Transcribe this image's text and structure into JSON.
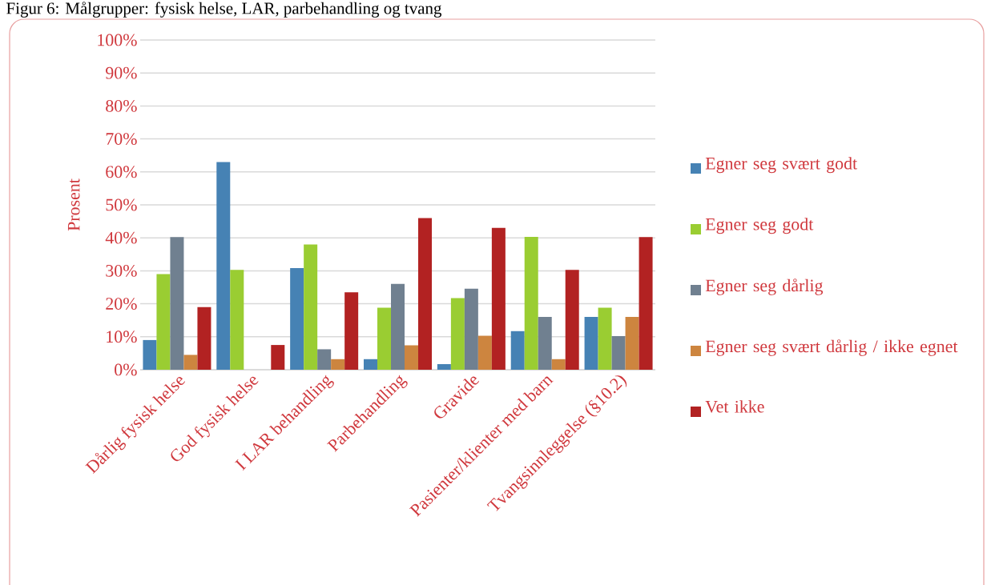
{
  "chart_data": {
    "type": "bar",
    "title": "Figur 6: Målgrupper: fysisk helse, LAR, parbehandling og tvang",
    "ylabel": "Prosent",
    "categories": [
      "Dårlig fysisk helse",
      "God fysisk helse",
      "I LAR behandling",
      "Parbehandling",
      "Gravide",
      "Pasienter/klienter med barn",
      "Tvangsinnleggelse (§10.2)"
    ],
    "series": [
      {
        "name": "Egner seg svært godt",
        "color": "#4682b4",
        "values": [
          9,
          63,
          30.8,
          3.2,
          1.7,
          11.7,
          16
        ]
      },
      {
        "name": "Egner seg godt",
        "color": "#9acd32",
        "values": [
          29,
          30.3,
          38,
          18.8,
          21.7,
          40.3,
          18.8
        ]
      },
      {
        "name": "Egner seg dårlig",
        "color": "#708090",
        "values": [
          40.2,
          0,
          6.2,
          26,
          24.6,
          16,
          10.2
        ]
      },
      {
        "name": "Egner seg svært dårlig / ikke egnet",
        "color": "#cd853f",
        "values": [
          4.5,
          0,
          3.2,
          7.4,
          10.3,
          3.2,
          16
        ]
      },
      {
        "name": "Vet ikke",
        "color": "#b22222",
        "values": [
          19,
          7.5,
          23.5,
          46,
          43,
          30.3,
          40.2
        ]
      }
    ],
    "ylim": [
      0,
      100
    ],
    "yticks": [
      {
        "value": 0,
        "label": "0%"
      },
      {
        "value": 10,
        "label": "10%"
      },
      {
        "value": 20,
        "label": "20%"
      },
      {
        "value": 30,
        "label": "30%"
      },
      {
        "value": 40,
        "label": "40%"
      },
      {
        "value": 50,
        "label": "50%"
      },
      {
        "value": 60,
        "label": "60%"
      },
      {
        "value": 70,
        "label": "70%"
      },
      {
        "value": 80,
        "label": "80%"
      },
      {
        "value": 90,
        "label": "90%"
      },
      {
        "value": 100,
        "label": "100%"
      }
    ],
    "grid": "y",
    "legend": "right"
  }
}
